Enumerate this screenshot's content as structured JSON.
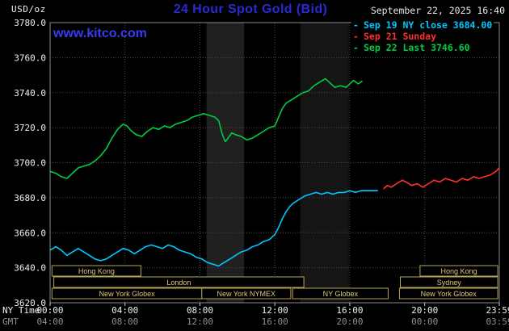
{
  "header": {
    "unit_label": "USD/oz",
    "title": "24 Hour Spot Gold (Bid)",
    "datetime": "September 22, 2025 16:40",
    "watermark": "www.kitco.com"
  },
  "colors": {
    "title": "#2a2ad2",
    "watermark": "#3a3af0",
    "grid": "#4a4a4a",
    "plot_border": "#8a8a8a",
    "session_border": "#b9a455",
    "session_text": "#dcc97e"
  },
  "legend_meta": {
    "dash": "-"
  },
  "legend": [
    {
      "label": "Sep 19 NY close 3684.00",
      "color": "#00c8ff"
    },
    {
      "label": "Sep 21 Sunday",
      "color": "#ff3030"
    },
    {
      "label": "Sep 22 Last 3746.60",
      "color": "#00cc44"
    }
  ],
  "axes": {
    "ny_time_label": "NY Time",
    "gmt_label": "GMT",
    "x_ticks_ny": [
      "00:00",
      "04:00",
      "08:00",
      "12:00",
      "16:00",
      "20:00",
      "23:59"
    ],
    "x_ticks_gmt": [
      "04:00",
      "08:00",
      "12:00",
      "16:00",
      "20:00",
      "00:00",
      "03:59"
    ],
    "y_ticks": [
      "3780.0",
      "3760.0",
      "3740.0",
      "3720.0",
      "3700.0",
      "3680.0",
      "3660.0",
      "3640.0",
      "3620.0"
    ]
  },
  "sessions": [
    {
      "label": "Hong Kong",
      "row": 0,
      "start": 0.1,
      "end": 4.85
    },
    {
      "label": "Hong Kong",
      "row": 0,
      "start": 19.75,
      "end": 23.9
    },
    {
      "label": "London",
      "row": 1,
      "start": 0.2,
      "end": 13.55
    },
    {
      "label": "Sydney",
      "row": 1,
      "start": 18.7,
      "end": 23.9
    },
    {
      "label": "New York Globex",
      "row": 2,
      "start": 0.1,
      "end": 8.1
    },
    {
      "label": "New York NYMEX",
      "row": 2,
      "start": 8.1,
      "end": 12.85
    },
    {
      "label": "NY Globex",
      "row": 2,
      "start": 12.95,
      "end": 18.05
    },
    {
      "label": "New York Globex",
      "row": 2,
      "start": 18.65,
      "end": 23.9
    }
  ],
  "chart_data": {
    "type": "line",
    "title": "24 Hour Spot Gold (Bid)",
    "ylabel": "USD/oz",
    "x_axis": {
      "label": "NY Time",
      "range_hours": [
        0,
        23.983
      ],
      "tick_hours": [
        0,
        4,
        8,
        12,
        16,
        20,
        23.983
      ]
    },
    "y_axis": {
      "range": [
        3620,
        3780
      ],
      "tick_step": 20
    },
    "bands": [
      {
        "start": 8.35,
        "end": 10.35,
        "color": "#202020"
      },
      {
        "start": 13.35,
        "end": 15.95,
        "color": "#151515"
      }
    ],
    "series": [
      {
        "id": "sep19",
        "name": "Sep 19 NY close 3684.00",
        "color": "#00c8ff",
        "points": [
          [
            0,
            3650
          ],
          [
            0.3,
            3652
          ],
          [
            0.6,
            3650
          ],
          [
            0.9,
            3647
          ],
          [
            1.2,
            3649
          ],
          [
            1.5,
            3651
          ],
          [
            1.8,
            3649
          ],
          [
            2.1,
            3647
          ],
          [
            2.4,
            3645
          ],
          [
            2.7,
            3644
          ],
          [
            3,
            3645
          ],
          [
            3.3,
            3647
          ],
          [
            3.6,
            3649
          ],
          [
            3.9,
            3651
          ],
          [
            4.2,
            3650
          ],
          [
            4.5,
            3648
          ],
          [
            4.8,
            3650
          ],
          [
            5.1,
            3652
          ],
          [
            5.4,
            3653
          ],
          [
            5.7,
            3652
          ],
          [
            6,
            3651
          ],
          [
            6.3,
            3653
          ],
          [
            6.6,
            3652
          ],
          [
            6.9,
            3650
          ],
          [
            7.2,
            3649
          ],
          [
            7.5,
            3648
          ],
          [
            7.8,
            3646
          ],
          [
            8.1,
            3645
          ],
          [
            8.4,
            3643
          ],
          [
            8.7,
            3642
          ],
          [
            9,
            3641
          ],
          [
            9.3,
            3643
          ],
          [
            9.6,
            3645
          ],
          [
            9.9,
            3647
          ],
          [
            10.2,
            3649
          ],
          [
            10.5,
            3650
          ],
          [
            10.8,
            3652
          ],
          [
            11.1,
            3653
          ],
          [
            11.4,
            3655
          ],
          [
            11.7,
            3656
          ],
          [
            12,
            3659
          ],
          [
            12.2,
            3663
          ],
          [
            12.4,
            3668
          ],
          [
            12.6,
            3672
          ],
          [
            12.8,
            3675
          ],
          [
            13,
            3677
          ],
          [
            13.3,
            3679
          ],
          [
            13.6,
            3681
          ],
          [
            13.9,
            3682
          ],
          [
            14.2,
            3683
          ],
          [
            14.5,
            3682
          ],
          [
            14.8,
            3683
          ],
          [
            15.1,
            3682
          ],
          [
            15.4,
            3683
          ],
          [
            15.7,
            3683
          ],
          [
            16,
            3684
          ],
          [
            16.3,
            3683
          ],
          [
            16.6,
            3684
          ],
          [
            16.9,
            3684
          ],
          [
            17.2,
            3684
          ],
          [
            17.5,
            3684
          ]
        ]
      },
      {
        "id": "sep21",
        "name": "Sep 21 Sunday",
        "color": "#ff3030",
        "points": [
          [
            17.8,
            3685
          ],
          [
            18,
            3687
          ],
          [
            18.2,
            3686
          ],
          [
            18.5,
            3688
          ],
          [
            18.8,
            3690
          ],
          [
            19,
            3689
          ],
          [
            19.3,
            3687
          ],
          [
            19.6,
            3688
          ],
          [
            19.9,
            3686
          ],
          [
            20.2,
            3688
          ],
          [
            20.5,
            3690
          ],
          [
            20.8,
            3689
          ],
          [
            21.1,
            3691
          ],
          [
            21.4,
            3690
          ],
          [
            21.7,
            3689
          ],
          [
            22,
            3691
          ],
          [
            22.3,
            3690
          ],
          [
            22.6,
            3692
          ],
          [
            22.9,
            3691
          ],
          [
            23.2,
            3692
          ],
          [
            23.5,
            3693
          ],
          [
            23.8,
            3695
          ],
          [
            23.97,
            3697
          ]
        ]
      },
      {
        "id": "sep22",
        "name": "Sep 22 Last 3746.60",
        "color": "#00cc44",
        "points": [
          [
            0,
            3695
          ],
          [
            0.3,
            3694
          ],
          [
            0.6,
            3692
          ],
          [
            0.9,
            3691
          ],
          [
            1.2,
            3694
          ],
          [
            1.5,
            3697
          ],
          [
            1.8,
            3698
          ],
          [
            2.1,
            3699
          ],
          [
            2.4,
            3701
          ],
          [
            2.7,
            3704
          ],
          [
            3,
            3708
          ],
          [
            3.3,
            3714
          ],
          [
            3.6,
            3719
          ],
          [
            3.9,
            3722
          ],
          [
            4.1,
            3721
          ],
          [
            4.35,
            3718
          ],
          [
            4.6,
            3716
          ],
          [
            4.9,
            3715
          ],
          [
            5.2,
            3718
          ],
          [
            5.5,
            3720
          ],
          [
            5.8,
            3719
          ],
          [
            6.1,
            3721
          ],
          [
            6.4,
            3720
          ],
          [
            6.7,
            3722
          ],
          [
            7,
            3723
          ],
          [
            7.3,
            3724
          ],
          [
            7.6,
            3726
          ],
          [
            7.9,
            3727
          ],
          [
            8.2,
            3728
          ],
          [
            8.5,
            3727
          ],
          [
            8.8,
            3726
          ],
          [
            9,
            3724
          ],
          [
            9.2,
            3716
          ],
          [
            9.35,
            3712
          ],
          [
            9.5,
            3714
          ],
          [
            9.7,
            3717
          ],
          [
            9.9,
            3716
          ],
          [
            10.2,
            3715
          ],
          [
            10.5,
            3713
          ],
          [
            10.8,
            3714
          ],
          [
            11.1,
            3716
          ],
          [
            11.4,
            3718
          ],
          [
            11.7,
            3720
          ],
          [
            12,
            3721
          ],
          [
            12.2,
            3726
          ],
          [
            12.4,
            3731
          ],
          [
            12.6,
            3734
          ],
          [
            12.9,
            3736
          ],
          [
            13.2,
            3738
          ],
          [
            13.5,
            3740
          ],
          [
            13.8,
            3741
          ],
          [
            14.1,
            3744
          ],
          [
            14.4,
            3746
          ],
          [
            14.7,
            3748
          ],
          [
            15,
            3745
          ],
          [
            15.2,
            3743
          ],
          [
            15.5,
            3744
          ],
          [
            15.8,
            3743
          ],
          [
            16,
            3745
          ],
          [
            16.2,
            3747
          ],
          [
            16.45,
            3745
          ],
          [
            16.67,
            3746.6
          ]
        ]
      }
    ]
  }
}
